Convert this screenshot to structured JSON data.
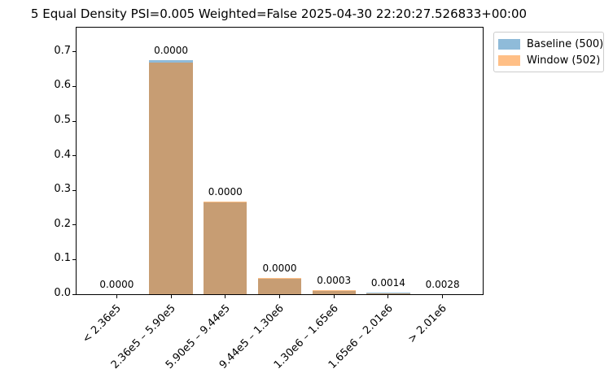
{
  "title": "5 Equal Density PSI=0.005 Weighted=False 2025-04-30 22:20:27.526833+00:00",
  "legend": {
    "entries": [
      {
        "label": "Baseline (500)",
        "swatch_color": "#8fbbd9"
      },
      {
        "label": "Window (502)",
        "swatch_color": "#ffbf86"
      }
    ]
  },
  "chart_data": {
    "type": "bar",
    "title": "5 Equal Density PSI=0.005 Weighted=False 2025-04-30 22:20:27.526833+00:00",
    "categories": [
      "< 2.36e5",
      "2.36e5 – 5.90e5",
      "5.90e5 – 9.44e5",
      "9.44e5 – 1.30e6",
      "1.30e6 – 1.65e6",
      "1.65e6 – 2.01e6",
      "> 2.01e6"
    ],
    "series": [
      {
        "name": "Baseline (500)",
        "color": "#1f77b4",
        "alpha": 0.5,
        "values": [
          0.0,
          0.676,
          0.266,
          0.044,
          0.01,
          0.005,
          0.0
        ]
      },
      {
        "name": "Window (502)",
        "color": "#ff7f0e",
        "alpha": 0.5,
        "values": [
          0.0,
          0.668,
          0.268,
          0.046,
          0.012,
          0.002,
          0.0
        ]
      }
    ],
    "bar_annotations": [
      "0.0000",
      "0.0000",
      "0.0000",
      "0.0000",
      "0.0003",
      "0.0014",
      "0.0028"
    ],
    "xlabel": "",
    "ylabel": "",
    "ylim": [
      0.0,
      0.77
    ],
    "yticks": [
      "0.0",
      "0.1",
      "0.2",
      "0.3",
      "0.4",
      "0.5",
      "0.6",
      "0.7"
    ],
    "grid": false,
    "legend_position": "upper right, outside axes",
    "bar_style": "overlapping translucent bars, annotation above each pair"
  }
}
